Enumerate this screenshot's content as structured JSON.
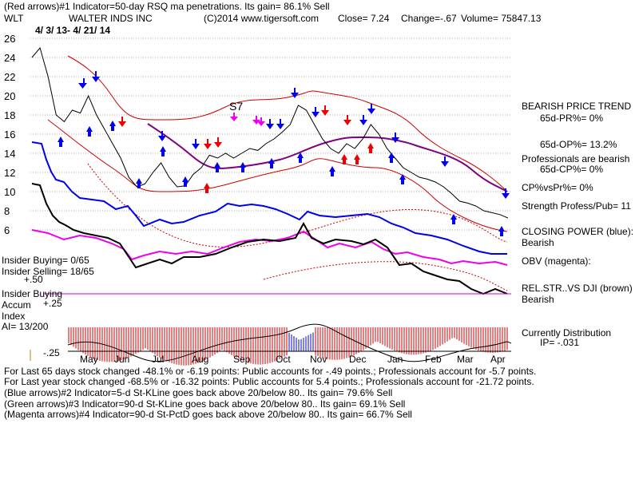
{
  "header": {
    "line1": "(Red arrows)#1 Indicator=50-day RSQ ma penetrations. Its gain= 86.1% Sell",
    "ticker": "WLT",
    "company": "WALTER INDS INC",
    "copyright": "(C)2014 www.tigersoft.com",
    "close": "Close=  7.24",
    "change": "Change=-.67",
    "volume": "Volume= 75847.13",
    "date_range": "4/ 3/ 13-  4/ 21/ 14"
  },
  "right_panel": {
    "trend": "BEARISH PRICE TREND",
    "pr": "65d-PR%= 0%",
    "op": "65d-OP%= 13.2%",
    "professionals": "Professionals are bearish",
    "cp": "65d-CP%= 0%",
    "cpvspr": "CP%vsPr%=  0%",
    "strength": "Strength Profess/Pub= 11",
    "closing_power": "CLOSING POWER (blue):",
    "closing_power_val": "Bearish",
    "obv": "OBV (magenta):",
    "relstr": "REL.STR..VS DJI (brown)",
    "relstr_val": "Bearish",
    "distribution": "Currently Distribution",
    "ip": "IP= -.031"
  },
  "left_panel": {
    "insider_buying_count": "Insider Buying= 0/65",
    "insider_selling": "Insider Selling= 18/65",
    "plus50": "+.50",
    "insider_buying_label": "Insider Buying",
    "accum": "Accum",
    "plus25": "+.25",
    "index": "Index",
    "ai": "AI= 13/200",
    "minus25": "-.25"
  },
  "footer": {
    "line1": "For Last 65 days stock changed -48.1% or -6.19 points:  Public accounts for -.49 points.; Professionals account for -5.7 points.",
    "line2": "For Last year stock changed -68.5% or -16.32 points:  Public accounts for  5.4 points.; Professionals account for -21.72 points.",
    "line3": "(Blue arrows)#2 Indicator=5-d St-KLine goes back above 20/below 80.. Its gain= 79.6% Sell",
    "line4": "(Green arrows)#3 Indicator=90-d St-KLine goes back above 20/below 80.. Its gain= 69.1% Sell",
    "line5": "(Magenta arrows)#4 Indicator=90-d St-PctD goes back above 20/below 80.. Its gain= 66.7% Sell"
  },
  "chart_data": {
    "type": "line",
    "annotation": "S7",
    "y_ticks": [
      "26",
      "24",
      "22",
      "20",
      "18",
      "16",
      "14",
      "12",
      "10",
      "8",
      "6"
    ],
    "ylim": [
      5,
      27
    ],
    "x_month_labels": [
      "May",
      "Jun",
      "Jul",
      "Aug",
      "Sep",
      "Oct",
      "Nov",
      "Dec",
      "Jan",
      "Feb",
      "Mar",
      "Apr"
    ],
    "price_series": [
      [
        0,
        24.0
      ],
      [
        4,
        25.0
      ],
      [
        8,
        22.0
      ],
      [
        12,
        18.0
      ],
      [
        16,
        17.3
      ],
      [
        20,
        18.5
      ],
      [
        24,
        18.2
      ],
      [
        28,
        20.0
      ],
      [
        32,
        18.0
      ],
      [
        36,
        16.5
      ],
      [
        40,
        15.0
      ],
      [
        44,
        13.5
      ],
      [
        48,
        11.5
      ],
      [
        52,
        10.5
      ],
      [
        56,
        10.8
      ],
      [
        60,
        12.0
      ],
      [
        64,
        13.0
      ],
      [
        68,
        11.5
      ],
      [
        72,
        10.5
      ],
      [
        76,
        10.6
      ],
      [
        80,
        11.8
      ],
      [
        84,
        12.5
      ],
      [
        88,
        13.8
      ],
      [
        92,
        13.5
      ],
      [
        96,
        14.0
      ],
      [
        100,
        13.5
      ],
      [
        104,
        14.0
      ],
      [
        108,
        14.5
      ],
      [
        112,
        14.3
      ],
      [
        116,
        15.0
      ],
      [
        120,
        15.5
      ],
      [
        124,
        16.2
      ],
      [
        128,
        17.0
      ],
      [
        132,
        19.0
      ],
      [
        136,
        18.5
      ],
      [
        140,
        17.0
      ],
      [
        144,
        15.5
      ],
      [
        148,
        14.5
      ],
      [
        152,
        14.0
      ],
      [
        156,
        15.0
      ],
      [
        160,
        14.5
      ],
      [
        164,
        15.5
      ],
      [
        168,
        17.0
      ],
      [
        172,
        16.0
      ],
      [
        176,
        14.5
      ],
      [
        180,
        13.5
      ],
      [
        184,
        12.5
      ],
      [
        188,
        12.0
      ],
      [
        192,
        11.5
      ],
      [
        196,
        11.3
      ],
      [
        200,
        11.0
      ],
      [
        204,
        10.5
      ],
      [
        208,
        9.8
      ],
      [
        212,
        9.0
      ],
      [
        216,
        8.8
      ],
      [
        220,
        8.5
      ],
      [
        224,
        8.0
      ],
      [
        228,
        7.8
      ],
      [
        232,
        7.6
      ],
      [
        236,
        7.24
      ]
    ]
  }
}
